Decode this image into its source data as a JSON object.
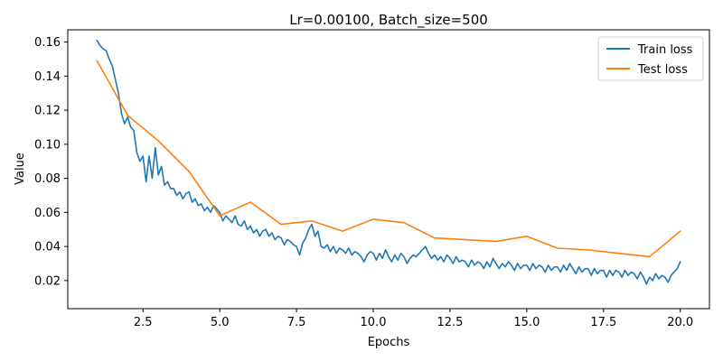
{
  "chart_data": {
    "type": "line",
    "title": "Lr=0.00100, Batch_size=500",
    "xlabel": "Epochs",
    "ylabel": "Value",
    "xlim": [
      0.05,
      20.95
    ],
    "ylim": [
      0.0035,
      0.1672
    ],
    "xticks": [
      2.5,
      5.0,
      7.5,
      10.0,
      12.5,
      15.0,
      17.5,
      20.0
    ],
    "xtick_labels": [
      "2.5",
      "5.0",
      "7.5",
      "10.0",
      "12.5",
      "15.0",
      "17.5",
      "20.0"
    ],
    "yticks": [
      0.02,
      0.04,
      0.06,
      0.08,
      0.1,
      0.12,
      0.14,
      0.16
    ],
    "ytick_labels": [
      "0.02",
      "0.04",
      "0.06",
      "0.08",
      "0.10",
      "0.12",
      "0.14",
      "0.16"
    ],
    "legend_position": "top-right",
    "grid": false,
    "series": [
      {
        "name": "Train loss",
        "color": "#1f77b4",
        "points": [
          [
            1.0,
            0.161
          ],
          [
            1.1,
            0.158
          ],
          [
            1.2,
            0.156
          ],
          [
            1.3,
            0.155
          ],
          [
            1.4,
            0.15
          ],
          [
            1.5,
            0.146
          ],
          [
            1.6,
            0.138
          ],
          [
            1.7,
            0.13
          ],
          [
            1.8,
            0.118
          ],
          [
            1.9,
            0.112
          ],
          [
            2.0,
            0.116
          ],
          [
            2.1,
            0.11
          ],
          [
            2.2,
            0.108
          ],
          [
            2.3,
            0.095
          ],
          [
            2.4,
            0.09
          ],
          [
            2.5,
            0.093
          ],
          [
            2.6,
            0.078
          ],
          [
            2.7,
            0.093
          ],
          [
            2.8,
            0.08
          ],
          [
            2.9,
            0.098
          ],
          [
            3.0,
            0.082
          ],
          [
            3.1,
            0.087
          ],
          [
            3.2,
            0.076
          ],
          [
            3.3,
            0.078
          ],
          [
            3.4,
            0.074
          ],
          [
            3.5,
            0.074
          ],
          [
            3.6,
            0.07
          ],
          [
            3.7,
            0.072
          ],
          [
            3.8,
            0.068
          ],
          [
            3.9,
            0.071
          ],
          [
            4.0,
            0.072
          ],
          [
            4.1,
            0.066
          ],
          [
            4.2,
            0.068
          ],
          [
            4.3,
            0.064
          ],
          [
            4.4,
            0.065
          ],
          [
            4.5,
            0.061
          ],
          [
            4.6,
            0.063
          ],
          [
            4.7,
            0.06
          ],
          [
            4.8,
            0.064
          ],
          [
            4.9,
            0.062
          ],
          [
            5.0,
            0.06
          ],
          [
            5.1,
            0.055
          ],
          [
            5.2,
            0.058
          ],
          [
            5.3,
            0.056
          ],
          [
            5.4,
            0.054
          ],
          [
            5.5,
            0.058
          ],
          [
            5.6,
            0.053
          ],
          [
            5.7,
            0.052
          ],
          [
            5.8,
            0.055
          ],
          [
            5.9,
            0.05
          ],
          [
            6.0,
            0.052
          ],
          [
            6.1,
            0.048
          ],
          [
            6.2,
            0.05
          ],
          [
            6.3,
            0.046
          ],
          [
            6.4,
            0.049
          ],
          [
            6.5,
            0.05
          ],
          [
            6.6,
            0.046
          ],
          [
            6.7,
            0.048
          ],
          [
            6.8,
            0.044
          ],
          [
            6.9,
            0.046
          ],
          [
            7.0,
            0.045
          ],
          [
            7.1,
            0.041
          ],
          [
            7.2,
            0.044
          ],
          [
            7.3,
            0.043
          ],
          [
            7.4,
            0.041
          ],
          [
            7.5,
            0.04
          ],
          [
            7.6,
            0.035
          ],
          [
            7.7,
            0.042
          ],
          [
            7.8,
            0.045
          ],
          [
            7.9,
            0.05
          ],
          [
            8.0,
            0.053
          ],
          [
            8.1,
            0.046
          ],
          [
            8.2,
            0.049
          ],
          [
            8.3,
            0.04
          ],
          [
            8.4,
            0.039
          ],
          [
            8.5,
            0.041
          ],
          [
            8.6,
            0.037
          ],
          [
            8.7,
            0.04
          ],
          [
            8.8,
            0.036
          ],
          [
            8.9,
            0.039
          ],
          [
            9.0,
            0.038
          ],
          [
            9.1,
            0.036
          ],
          [
            9.2,
            0.039
          ],
          [
            9.3,
            0.035
          ],
          [
            9.4,
            0.037
          ],
          [
            9.5,
            0.036
          ],
          [
            9.6,
            0.034
          ],
          [
            9.7,
            0.031
          ],
          [
            9.8,
            0.035
          ],
          [
            9.9,
            0.037
          ],
          [
            10.0,
            0.036
          ],
          [
            10.1,
            0.032
          ],
          [
            10.2,
            0.036
          ],
          [
            10.3,
            0.033
          ],
          [
            10.4,
            0.038
          ],
          [
            10.5,
            0.034
          ],
          [
            10.6,
            0.031
          ],
          [
            10.7,
            0.035
          ],
          [
            10.8,
            0.032
          ],
          [
            10.9,
            0.036
          ],
          [
            11.0,
            0.034
          ],
          [
            11.1,
            0.03
          ],
          [
            11.2,
            0.033
          ],
          [
            11.3,
            0.035
          ],
          [
            11.4,
            0.034
          ],
          [
            11.5,
            0.036
          ],
          [
            11.6,
            0.038
          ],
          [
            11.7,
            0.04
          ],
          [
            11.8,
            0.036
          ],
          [
            11.9,
            0.033
          ],
          [
            12.0,
            0.035
          ],
          [
            12.1,
            0.032
          ],
          [
            12.2,
            0.034
          ],
          [
            12.3,
            0.031
          ],
          [
            12.4,
            0.035
          ],
          [
            12.5,
            0.033
          ],
          [
            12.6,
            0.03
          ],
          [
            12.7,
            0.034
          ],
          [
            12.8,
            0.031
          ],
          [
            12.9,
            0.032
          ],
          [
            13.0,
            0.031
          ],
          [
            13.1,
            0.028
          ],
          [
            13.2,
            0.032
          ],
          [
            13.3,
            0.029
          ],
          [
            13.4,
            0.031
          ],
          [
            13.5,
            0.03
          ],
          [
            13.6,
            0.027
          ],
          [
            13.7,
            0.031
          ],
          [
            13.8,
            0.028
          ],
          [
            13.9,
            0.033
          ],
          [
            14.0,
            0.03
          ],
          [
            14.1,
            0.027
          ],
          [
            14.2,
            0.03
          ],
          [
            14.3,
            0.028
          ],
          [
            14.4,
            0.031
          ],
          [
            14.5,
            0.029
          ],
          [
            14.6,
            0.026
          ],
          [
            14.7,
            0.03
          ],
          [
            14.8,
            0.027
          ],
          [
            14.9,
            0.029
          ],
          [
            15.0,
            0.029
          ],
          [
            15.1,
            0.026
          ],
          [
            15.2,
            0.03
          ],
          [
            15.3,
            0.027
          ],
          [
            15.4,
            0.029
          ],
          [
            15.5,
            0.028
          ],
          [
            15.6,
            0.025
          ],
          [
            15.7,
            0.029
          ],
          [
            15.8,
            0.026
          ],
          [
            15.9,
            0.028
          ],
          [
            16.0,
            0.028
          ],
          [
            16.1,
            0.025
          ],
          [
            16.2,
            0.029
          ],
          [
            16.3,
            0.026
          ],
          [
            16.4,
            0.03
          ],
          [
            16.5,
            0.027
          ],
          [
            16.6,
            0.024
          ],
          [
            16.7,
            0.028
          ],
          [
            16.8,
            0.025
          ],
          [
            16.9,
            0.027
          ],
          [
            17.0,
            0.027
          ],
          [
            17.1,
            0.023
          ],
          [
            17.2,
            0.027
          ],
          [
            17.3,
            0.024
          ],
          [
            17.4,
            0.026
          ],
          [
            17.5,
            0.026
          ],
          [
            17.6,
            0.022
          ],
          [
            17.7,
            0.026
          ],
          [
            17.8,
            0.023
          ],
          [
            17.9,
            0.026
          ],
          [
            18.0,
            0.025
          ],
          [
            18.1,
            0.022
          ],
          [
            18.2,
            0.026
          ],
          [
            18.3,
            0.023
          ],
          [
            18.4,
            0.025
          ],
          [
            18.5,
            0.024
          ],
          [
            18.6,
            0.021
          ],
          [
            18.7,
            0.025
          ],
          [
            18.8,
            0.022
          ],
          [
            18.9,
            0.018
          ],
          [
            19.0,
            0.022
          ],
          [
            19.1,
            0.02
          ],
          [
            19.2,
            0.024
          ],
          [
            19.3,
            0.021
          ],
          [
            19.4,
            0.023
          ],
          [
            19.5,
            0.022
          ],
          [
            19.6,
            0.019
          ],
          [
            19.7,
            0.023
          ],
          [
            19.8,
            0.025
          ],
          [
            19.9,
            0.027
          ],
          [
            20.0,
            0.031
          ]
        ]
      },
      {
        "name": "Test loss",
        "color": "#ff7f0e",
        "points": [
          [
            1.0,
            0.149
          ],
          [
            2.0,
            0.117
          ],
          [
            3.0,
            0.102
          ],
          [
            4.0,
            0.084
          ],
          [
            5.0,
            0.058
          ],
          [
            6.0,
            0.066
          ],
          [
            7.0,
            0.053
          ],
          [
            8.0,
            0.055
          ],
          [
            9.0,
            0.049
          ],
          [
            10.0,
            0.056
          ],
          [
            11.0,
            0.054
          ],
          [
            12.0,
            0.045
          ],
          [
            13.0,
            0.044
          ],
          [
            14.0,
            0.043
          ],
          [
            15.0,
            0.046
          ],
          [
            16.0,
            0.039
          ],
          [
            17.0,
            0.038
          ],
          [
            18.0,
            0.036
          ],
          [
            19.0,
            0.034
          ],
          [
            20.0,
            0.049
          ]
        ]
      }
    ]
  }
}
